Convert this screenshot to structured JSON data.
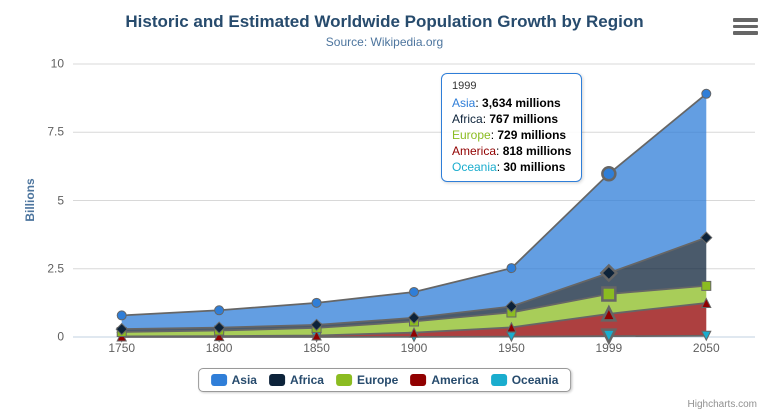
{
  "chart": {
    "title": "Historic and Estimated Worldwide Population Growth by Region",
    "subtitle": "Source: Wikipedia.org",
    "credits": "Highcharts.com"
  },
  "chart_data": {
    "type": "area",
    "stacking": "normal",
    "title": "Historic and Estimated Worldwide Population Growth by Region",
    "subtitle": "Source: Wikipedia.org",
    "xlabel": "",
    "ylabel": "Billions",
    "unit": "millions",
    "categories": [
      "1750",
      "1800",
      "1850",
      "1900",
      "1950",
      "1999",
      "2050"
    ],
    "series": [
      {
        "name": "Asia",
        "color": "#2f7ed8",
        "marker": "circle",
        "values": [
          502,
          635,
          809,
          947,
          1402,
          3634,
          5268
        ]
      },
      {
        "name": "Africa",
        "color": "#0d233a",
        "marker": "diamond",
        "values": [
          106,
          107,
          111,
          133,
          221,
          767,
          1766
        ]
      },
      {
        "name": "Europe",
        "color": "#8bbc21",
        "marker": "square",
        "values": [
          163,
          203,
          276,
          408,
          547,
          729,
          628
        ]
      },
      {
        "name": "America",
        "color": "#910000",
        "marker": "triangle",
        "values": [
          18,
          31,
          54,
          156,
          339,
          818,
          1201
        ]
      },
      {
        "name": "Oceania",
        "color": "#1aadce",
        "marker": "triangle-down",
        "values": [
          2,
          2,
          2,
          6,
          13,
          30,
          46
        ]
      }
    ],
    "yticks": [
      {
        "label": "0",
        "value": 0
      },
      {
        "label": "2.5",
        "value": 2.5
      },
      {
        "label": "5",
        "value": 5
      },
      {
        "label": "7.5",
        "value": 7.5
      },
      {
        "label": "10",
        "value": 10
      }
    ],
    "ylim": [
      0,
      10
    ],
    "grid": true,
    "legend_position": "bottom",
    "hover_category_index": 5,
    "fill_opacity": 0.75
  },
  "tooltip": {
    "header": "1999",
    "border_color": "#2f7ed8",
    "rows": [
      {
        "label": "Asia",
        "value": "3,634 millions",
        "color": "#2f7ed8"
      },
      {
        "label": "Africa",
        "value": "767 millions",
        "color": "#0d233a"
      },
      {
        "label": "Europe",
        "value": "729 millions",
        "color": "#8bbc21"
      },
      {
        "label": "America",
        "value": "818 millions",
        "color": "#910000"
      },
      {
        "label": "Oceania",
        "value": "30 millions",
        "color": "#1aadce"
      }
    ]
  },
  "colors": {
    "title": "#274b6d",
    "subtitle": "#4d759e",
    "axis_label": "#606060",
    "axis_title": "#4d759e",
    "grid": "#d8d8d8",
    "axis_line": "#c0d0e0",
    "series_outline": "#666666",
    "legend_text": "#274b6d",
    "legend_border": "#999999",
    "credits": "#909090"
  }
}
